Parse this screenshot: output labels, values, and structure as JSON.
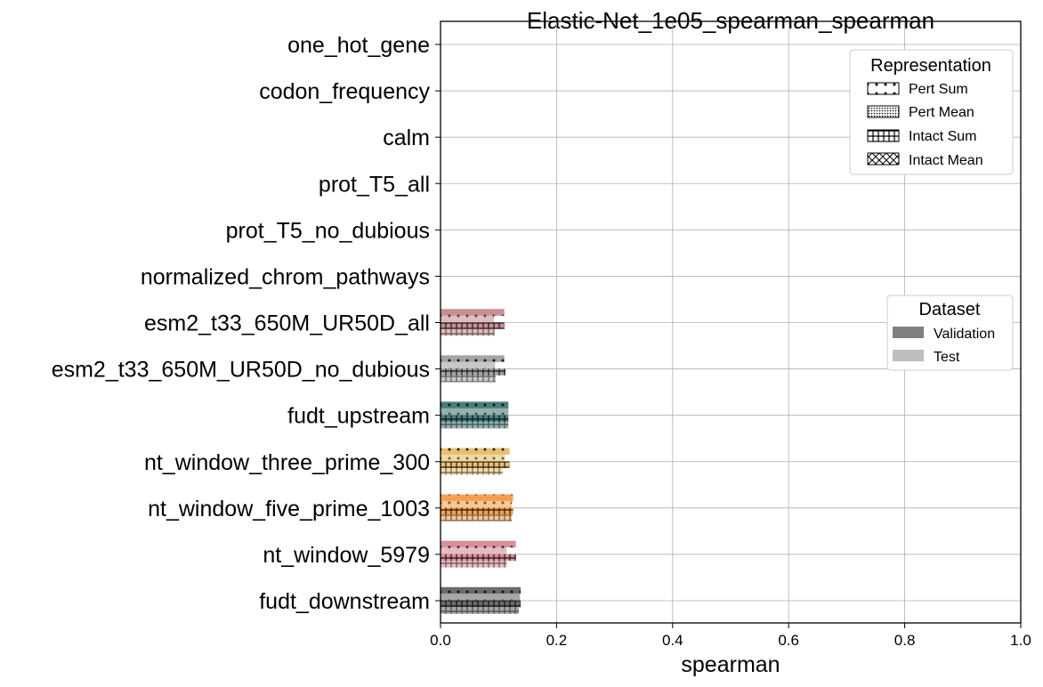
{
  "chart_data": {
    "type": "bar",
    "orientation": "horizontal",
    "title": "Elastic-Net_1e05_spearman_spearman",
    "xlabel": "spearman",
    "ylabel": "",
    "xlim": [
      0.0,
      1.0
    ],
    "xticks": [
      "0.0",
      "0.2",
      "0.4",
      "0.6",
      "0.8",
      "1.0"
    ],
    "grid": true,
    "categories": [
      "one_hot_gene",
      "codon_frequency",
      "calm",
      "prot_T5_all",
      "prot_T5_no_dubious",
      "normalized_chrom_pathways",
      "esm2_t33_650M_UR50D_all",
      "esm2_t33_650M_UR50D_no_dubious",
      "fudt_upstream",
      "nt_window_three_prime_300",
      "nt_window_five_prime_1003",
      "nt_window_5979",
      "fudt_downstream"
    ],
    "category_colors": {
      "esm2_t33_650M_UR50D_all": "#c98f96",
      "esm2_t33_650M_UR50D_no_dubious": "#a3a3a3",
      "fudt_upstream": "#4a7d7b",
      "nt_window_three_prime_300": "#e8c170",
      "nt_window_five_prime_1003": "#f5a04e",
      "nt_window_5979": "#d98f9b",
      "fudt_downstream": "#6b6b6b"
    },
    "series": [
      {
        "name": "Pert Sum / Validation",
        "values": [
          null,
          null,
          null,
          null,
          null,
          null,
          0.11,
          0.11,
          0.117,
          0.119,
          0.125,
          0.13,
          0.138
        ]
      },
      {
        "name": "Pert Sum / Test",
        "values": [
          null,
          null,
          null,
          null,
          null,
          null,
          0.092,
          0.094,
          0.117,
          0.111,
          0.123,
          0.114,
          0.137
        ]
      },
      {
        "name": "Intact Sum / Validation",
        "values": [
          null,
          null,
          null,
          null,
          null,
          null,
          0.11,
          0.112,
          0.117,
          0.119,
          0.125,
          0.13,
          0.138
        ]
      },
      {
        "name": "Intact Sum / Test",
        "values": [
          null,
          null,
          null,
          null,
          null,
          null,
          0.093,
          0.095,
          0.117,
          0.107,
          0.123,
          0.114,
          0.135
        ]
      }
    ],
    "legends": [
      {
        "title": "Representation",
        "position": "top-right",
        "entries": [
          {
            "label": "Pert Sum",
            "hatch": "dots"
          },
          {
            "label": "Pert Mean",
            "hatch": "fine-dots"
          },
          {
            "label": "Intact Sum",
            "hatch": "grid"
          },
          {
            "label": "Intact Mean",
            "hatch": "cross"
          }
        ]
      },
      {
        "title": "Dataset",
        "position": "center-right",
        "entries": [
          {
            "label": "Validation",
            "color": "#808080"
          },
          {
            "label": "Test",
            "color": "#bdbdbd"
          }
        ]
      }
    ]
  }
}
